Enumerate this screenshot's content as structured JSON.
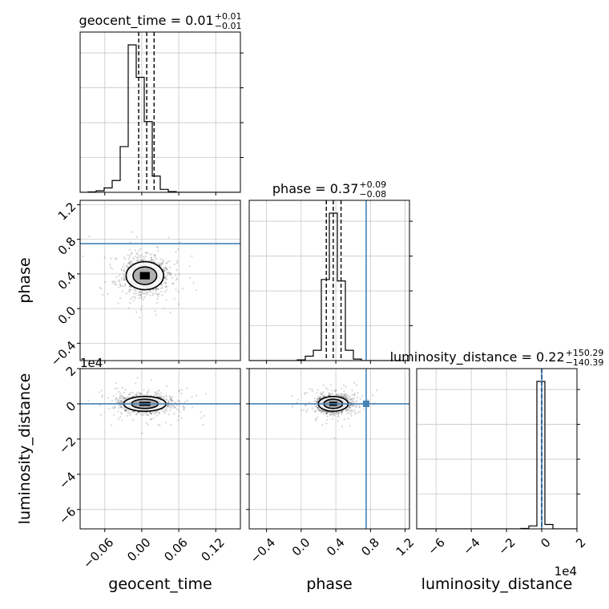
{
  "chart_data": {
    "type": "corner",
    "parameters": [
      "geocent_time",
      "phase",
      "luminosity_distance"
    ],
    "axis_labels": {
      "x": [
        "geocent_time",
        "phase",
        "luminosity_distance"
      ],
      "y": [
        "phase",
        "luminosity_distance"
      ]
    },
    "offset_labels": {
      "ld_y": "1e4",
      "ld_x": "1e4"
    },
    "ranges": {
      "geocent_time": [
        -0.1,
        0.16
      ],
      "phase": [
        -0.6,
        1.25
      ],
      "luminosity_distance": [
        -7.1,
        2.0
      ]
    },
    "ticks": {
      "geocent_time": {
        "values": [
          -0.06,
          0.0,
          0.06,
          0.12
        ],
        "labels": [
          "−0.06",
          "0.00",
          "0.06",
          "0.12"
        ]
      },
      "phase": {
        "values": [
          -0.4,
          0.0,
          0.4,
          0.8,
          1.2
        ],
        "labels": [
          "−0.4",
          "0.0",
          "0.4",
          "0.8",
          "1.2"
        ]
      },
      "luminosity_distance_y": {
        "values": [
          2,
          0,
          -2,
          -4,
          -6
        ],
        "labels": [
          "2",
          "0",
          "−2",
          "−4",
          "−6"
        ]
      },
      "luminosity_distance_x": {
        "values": [
          -6,
          -4,
          -2,
          0,
          2
        ],
        "labels": [
          "−6",
          "−4",
          "−2",
          "0",
          "2"
        ]
      }
    },
    "titles": [
      {
        "name": "geocent_time",
        "value": "0.01",
        "plus": "+0.01",
        "minus": "−0.01"
      },
      {
        "name": "phase",
        "value": "0.37",
        "plus": "+0.09",
        "minus": "−0.08"
      },
      {
        "name": "luminosity_distance",
        "value": "0.22",
        "plus": "+150.29",
        "minus": "−140.39"
      }
    ],
    "truths": {
      "geocent_time": null,
      "phase": 0.75,
      "luminosity_distance": 0.0
    },
    "quantiles": {
      "geocent_time": [
        -0.005,
        0.008,
        0.02
      ],
      "phase": [
        0.29,
        0.37,
        0.46
      ],
      "luminosity_distance": [
        -0.014,
        0.0,
        0.015
      ]
    },
    "histograms": {
      "geocent_time": {
        "edges": [
          -0.1,
          -0.087,
          -0.074,
          -0.061,
          -0.048,
          -0.035,
          -0.022,
          -0.009,
          0.004,
          0.017,
          0.03,
          0.043,
          0.056,
          0.069,
          0.082,
          0.095,
          0.108,
          0.121,
          0.134,
          0.147,
          0.16
        ],
        "counts": [
          0,
          0.3,
          1,
          3,
          8,
          31,
          100,
          78,
          48,
          11,
          2,
          0.5,
          0,
          0,
          0,
          0,
          0,
          0,
          0,
          0
        ]
      },
      "phase": {
        "edges": [
          -0.6,
          -0.5075,
          -0.415,
          -0.3225,
          -0.23,
          -0.1375,
          -0.045,
          0.0475,
          0.14,
          0.2325,
          0.325,
          0.4175,
          0.51,
          0.6025,
          0.695,
          0.7875,
          0.88,
          0.9725,
          1.065,
          1.1575,
          1.25
        ],
        "counts": [
          0,
          0,
          0,
          0,
          0,
          0,
          0.5,
          3,
          7,
          55,
          100,
          54,
          7,
          1,
          0,
          0,
          0,
          0,
          0,
          0
        ]
      },
      "luminosity_distance": {
        "edges": [
          -7.1,
          -6.645,
          -6.19,
          -5.735,
          -5.28,
          -4.825,
          -4.37,
          -3.915,
          -3.46,
          -3.005,
          -2.55,
          -2.095,
          -1.64,
          -1.185,
          -0.73,
          -0.275,
          0.18,
          0.635,
          1.09,
          1.545,
          2.0
        ],
        "counts": [
          0,
          0,
          0,
          0,
          0,
          0,
          0,
          0,
          0,
          0,
          0,
          0,
          0,
          0.3,
          2,
          100,
          3,
          0,
          0,
          0
        ]
      }
    },
    "samples_2d": {
      "phase_vs_geocent_time": {
        "center": [
          0.005,
          0.38
        ],
        "spread": [
          0.016,
          0.085
        ]
      },
      "luminosity_distance_vs_geocent_time": {
        "center": [
          0.005,
          0.0
        ],
        "spread": [
          0.018,
          0.22
        ]
      },
      "luminosity_distance_vs_phase": {
        "center": [
          0.37,
          0.0
        ],
        "spread": [
          0.09,
          0.22
        ]
      }
    },
    "grid": true
  }
}
